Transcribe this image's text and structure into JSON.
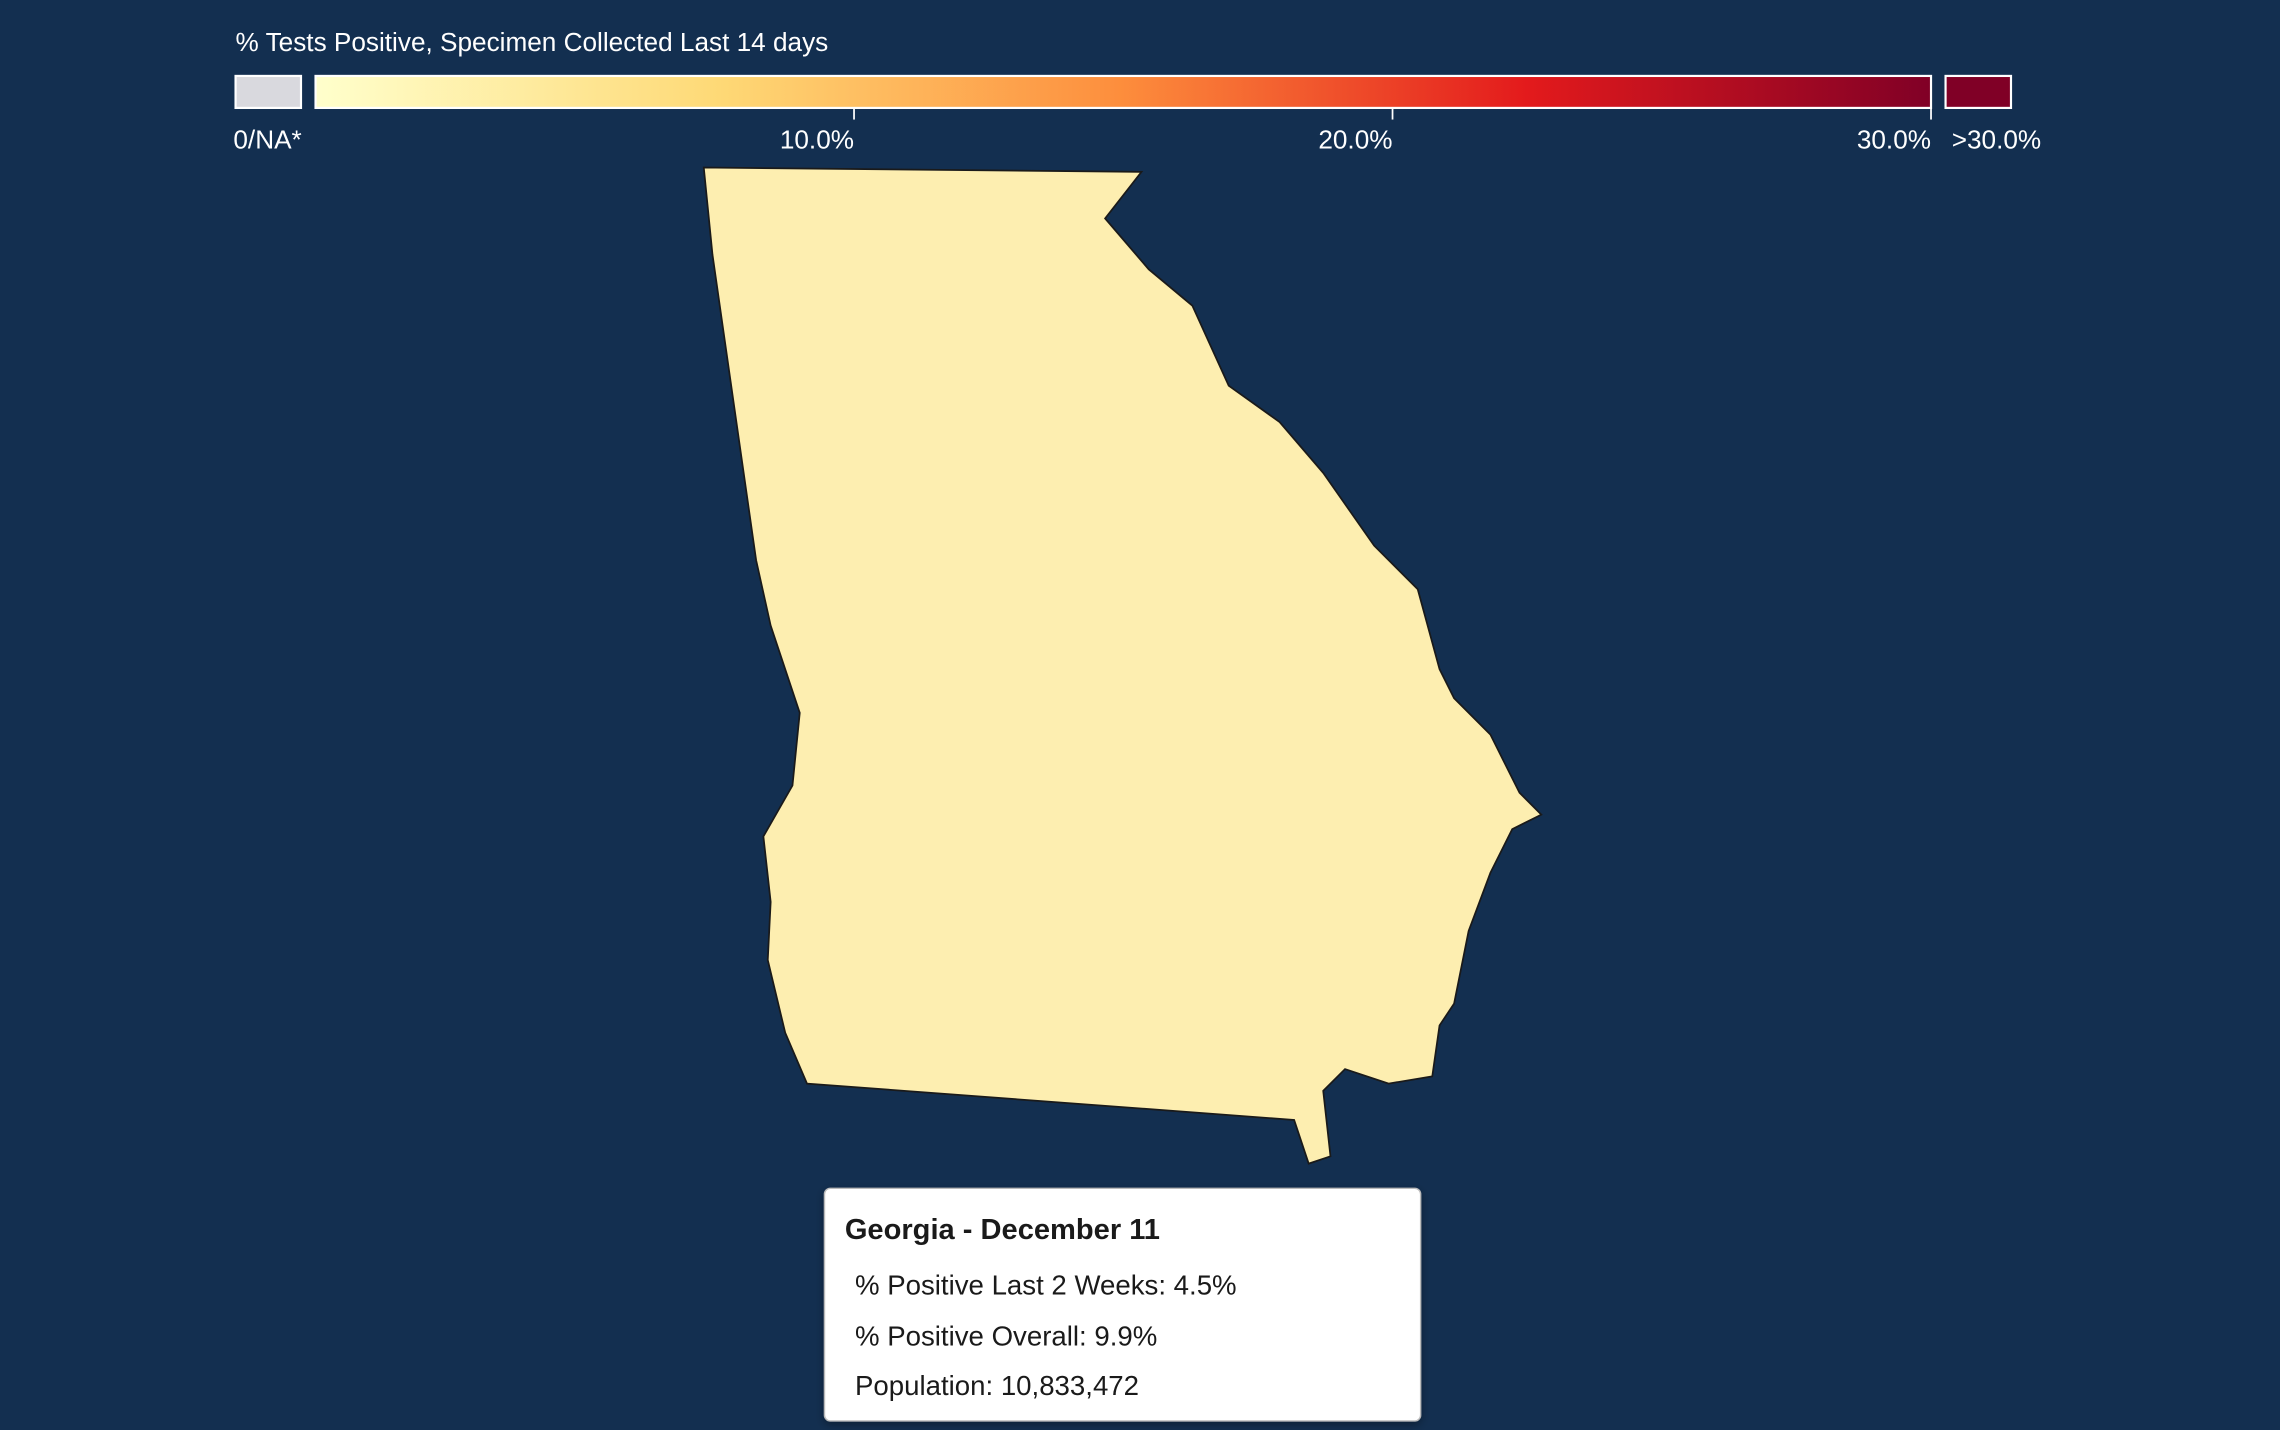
{
  "legend": {
    "title": "% Tests Positive, Specimen Collected Last 14 days",
    "na_label": "0/NA*",
    "over_label": ">30.0%",
    "range": [
      0,
      30
    ],
    "ticks": [
      {
        "value": 10,
        "label": "10.0%"
      },
      {
        "value": 20,
        "label": "20.0%"
      },
      {
        "value": 30,
        "label": "30.0%"
      }
    ]
  },
  "tooltip": {
    "title": "Georgia - December 11",
    "lines": [
      "% Positive Last 2 Weeks: 4.5%",
      "% Positive Overall: 9.9%",
      "Population: 10,833,472"
    ]
  }
}
